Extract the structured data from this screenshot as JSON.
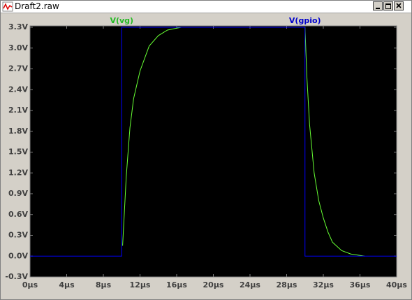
{
  "window": {
    "title": "Draft2.raw"
  },
  "chart_data": {
    "type": "line",
    "series": [
      {
        "name": "V(vg)",
        "color": "#66ff33",
        "x": [
          10.1,
          10.5,
          10.9,
          11.3,
          12,
          13,
          14,
          15,
          16.5,
          30,
          30.2,
          30.5,
          31,
          31.5,
          32,
          32.5,
          33,
          34,
          35,
          36,
          36.5
        ],
        "values": [
          0.15,
          1.15,
          1.85,
          2.27,
          2.67,
          3.03,
          3.18,
          3.26,
          3.3,
          3.3,
          2.6,
          1.9,
          1.2,
          0.8,
          0.55,
          0.35,
          0.2,
          0.08,
          0.03,
          0.01,
          0
        ]
      },
      {
        "name": "V(gpio)",
        "color": "#0000ff",
        "x": [
          0,
          10,
          10,
          30,
          30,
          40
        ],
        "values": [
          0,
          0,
          3.3,
          3.3,
          0,
          0
        ]
      }
    ],
    "xlim": [
      0,
      40
    ],
    "ylim": [
      -0.3,
      3.3
    ],
    "xticks": [
      {
        "value": 0,
        "label": "0µs"
      },
      {
        "value": 4,
        "label": "4µs"
      },
      {
        "value": 8,
        "label": "8µs"
      },
      {
        "value": 12,
        "label": "12µs"
      },
      {
        "value": 16,
        "label": "16µs"
      },
      {
        "value": 20,
        "label": "20µs"
      },
      {
        "value": 24,
        "label": "24µs"
      },
      {
        "value": 28,
        "label": "28µs"
      },
      {
        "value": 32,
        "label": "32µs"
      },
      {
        "value": 36,
        "label": "36µs"
      },
      {
        "value": 40,
        "label": "40µs"
      }
    ],
    "yticks": [
      {
        "value": -0.3,
        "label": "-0.3V"
      },
      {
        "value": 0,
        "label": "0.0V"
      },
      {
        "value": 0.3,
        "label": "0.3V"
      },
      {
        "value": 0.6,
        "label": "0.6V"
      },
      {
        "value": 0.9,
        "label": "0.9V"
      },
      {
        "value": 1.2,
        "label": "1.2V"
      },
      {
        "value": 1.5,
        "label": "1.5V"
      },
      {
        "value": 1.8,
        "label": "1.8V"
      },
      {
        "value": 2.1,
        "label": "2.1V"
      },
      {
        "value": 2.4,
        "label": "2.4V"
      },
      {
        "value": 2.7,
        "label": "2.7V"
      },
      {
        "value": 3.0,
        "label": "3.0V"
      },
      {
        "value": 3.3,
        "label": "3.3V"
      }
    ],
    "grid": false,
    "background": "#000000"
  }
}
